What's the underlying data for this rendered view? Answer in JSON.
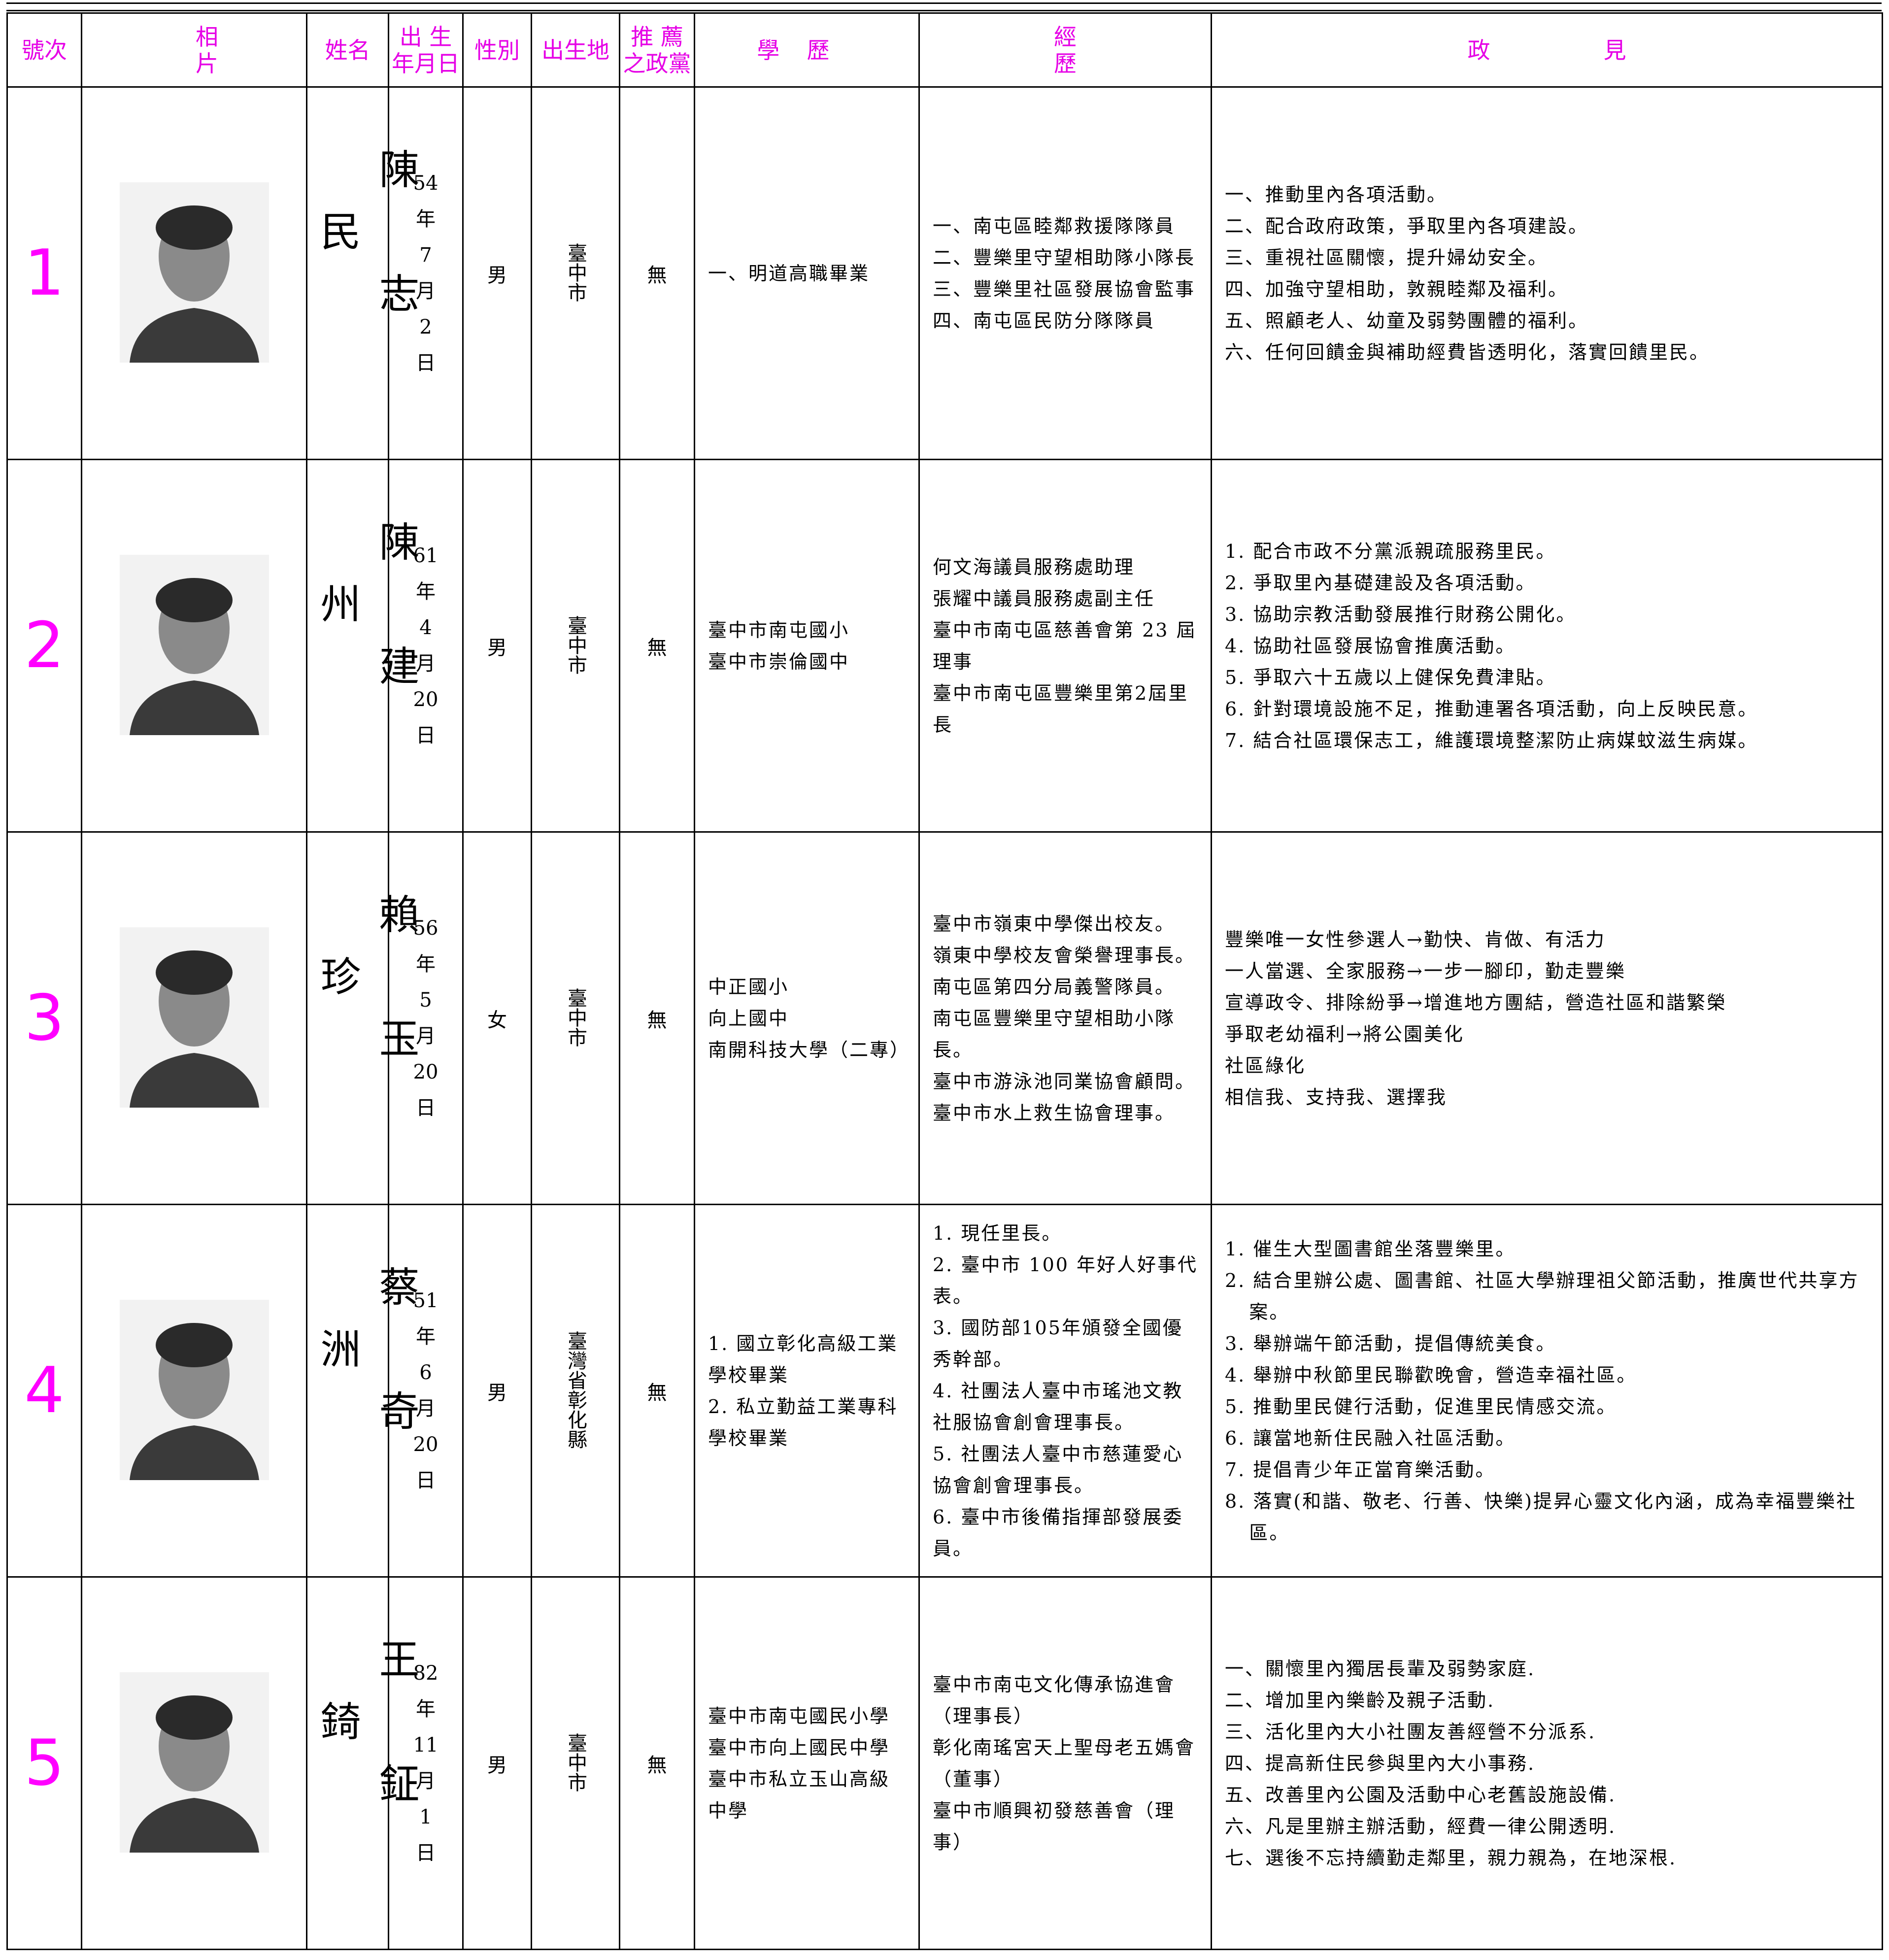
{
  "header": {
    "number": "號次",
    "photo": "相片",
    "name": "姓名",
    "birth": [
      "出 生",
      "年月日"
    ],
    "gender": "性別",
    "birthplace": "出生地",
    "party": [
      "推 薦",
      "之政黨"
    ],
    "education": "學歷",
    "experience": "經歷",
    "platform": "政見"
  },
  "rows": [
    {
      "number": "1",
      "name": "陳志民",
      "birth": [
        "54",
        "年",
        "7",
        "月",
        "2",
        "日"
      ],
      "gender": "男",
      "birthplace": "臺中市",
      "party": "無",
      "education": [
        "一、明道高職畢業"
      ],
      "experience": [
        "一、南屯區睦鄰救援隊隊員",
        "二、豐樂里守望相助隊小隊長",
        "三、豐樂里社區發展協會監事",
        "四、南屯區民防分隊隊員"
      ],
      "platform": [
        "一、推動里內各項活動。",
        "二、配合政府政策，爭取里內各項建設。",
        "三、重視社區關懷，提升婦幼安全。",
        "四、加強守望相助，敦親睦鄰及福利。",
        "五、照顧老人、幼童及弱勢團體的福利。",
        "六、任何回饋金與補助經費皆透明化，落實回饋里民。"
      ]
    },
    {
      "number": "2",
      "name": "陳建州",
      "birth": [
        "61",
        "年",
        "4",
        "月",
        "20",
        "日"
      ],
      "gender": "男",
      "birthplace": "臺中市",
      "party": "無",
      "education": [
        "臺中市南屯國小",
        "臺中市崇倫國中"
      ],
      "experience": [
        "何文海議員服務處助理",
        "張耀中議員服務處副主任",
        "臺中市南屯區慈善會第 23 屆理事",
        "臺中市南屯區豐樂里第2屆里長"
      ],
      "platform": [
        "1. 配合市政不分黨派親疏服務里民。",
        "2. 爭取里內基礎建設及各項活動。",
        "3. 協助宗教活動發展推行財務公開化。",
        "4. 協助社區發展協會推廣活動。",
        "5. 爭取六十五歲以上健保免費津貼。",
        "6. 針對環境設施不足，推動連署各項活動，向上反映民意。",
        "7. 結合社區環保志工，維護環境整潔防止病媒蚊滋生病媒。"
      ]
    },
    {
      "number": "3",
      "name": "賴玉珍",
      "birth": [
        "56",
        "年",
        "5",
        "月",
        "20",
        "日"
      ],
      "gender": "女",
      "birthplace": "臺中市",
      "party": "無",
      "education": [
        "中正國小",
        "向上國中",
        "南開科技大學（二專）"
      ],
      "experience": [
        "臺中市嶺東中學傑出校友。",
        "嶺東中學校友會榮譽理事長。",
        "南屯區第四分局義警隊員。",
        "南屯區豐樂里守望相助小隊長。",
        "臺中市游泳池同業協會顧問。",
        "臺中市水上救生協會理事。"
      ],
      "platform": [
        "豐樂唯一女性參選人→勤快、肯做、有活力",
        "一人當選、全家服務→一步一腳印，勤走豐樂",
        "宣導政令、排除紛爭→增進地方團結，營造社區和諧繁榮",
        "爭取老幼福利→將公園美化",
        "社區綠化",
        "相信我、支持我、選擇我"
      ]
    },
    {
      "number": "4",
      "name": "蔡奇洲",
      "birth": [
        "51",
        "年",
        "6",
        "月",
        "20",
        "日"
      ],
      "gender": "男",
      "birthplace": "臺灣省彰化縣",
      "party": "無",
      "education": [
        "1. 國立彰化高級工業學校畢業",
        "2. 私立勤益工業專科學校畢業"
      ],
      "experience": [
        "1. 現任里長。",
        "2. 臺中市 100 年好人好事代表。",
        "3. 國防部105年頒發全國優秀幹部。",
        "4. 社團法人臺中市瑤池文教社服協會創會理事長。",
        "5. 社團法人臺中市慈蓮愛心協會創會理事長。",
        "6. 臺中市後備指揮部發展委員。"
      ],
      "platform": [
        "1. 催生大型圖書館坐落豐樂里。",
        "2. 結合里辦公處、圖書館、社區大學辦理祖父節活動，推廣世代共享方案。",
        "3. 舉辦端午節活動，提倡傳統美食。",
        "4. 舉辦中秋節里民聯歡晚會，營造幸福社區。",
        "5. 推動里民健行活動，促進里民情感交流。",
        "6. 讓當地新住民融入社區活動。",
        "7. 提倡青少年正當育樂活動。",
        "8. 落實(和諧、敬老、行善、快樂)提昇心靈文化內涵，成為幸福豐樂社區。"
      ]
    },
    {
      "number": "5",
      "name": "王鉦錡",
      "birth": [
        "82",
        "年",
        "11",
        "月",
        "1",
        "日"
      ],
      "gender": "男",
      "birthplace": "臺中市",
      "party": "無",
      "education": [
        "臺中市南屯國民小學",
        "臺中市向上國民中學",
        "臺中市私立玉山高級中學"
      ],
      "experience": [
        "臺中市南屯文化傳承協進會（理事長）",
        "彰化南瑤宮天上聖母老五媽會（董事）",
        "臺中市順興初發慈善會（理事）"
      ],
      "platform": [
        "一、關懷里內獨居長輩及弱勢家庭.",
        "二、增加里內樂齡及親子活動.",
        "三、活化里內大小社團友善經營不分派系.",
        "四、提高新住民參與里內大小事務.",
        "五、改善里內公園及活動中心老舊設施設備.",
        "六、凡是里辦主辦活動，經費一律公開透明.",
        "七、選後不忘持續勤走鄰里，親力親為，在地深根."
      ]
    }
  ]
}
